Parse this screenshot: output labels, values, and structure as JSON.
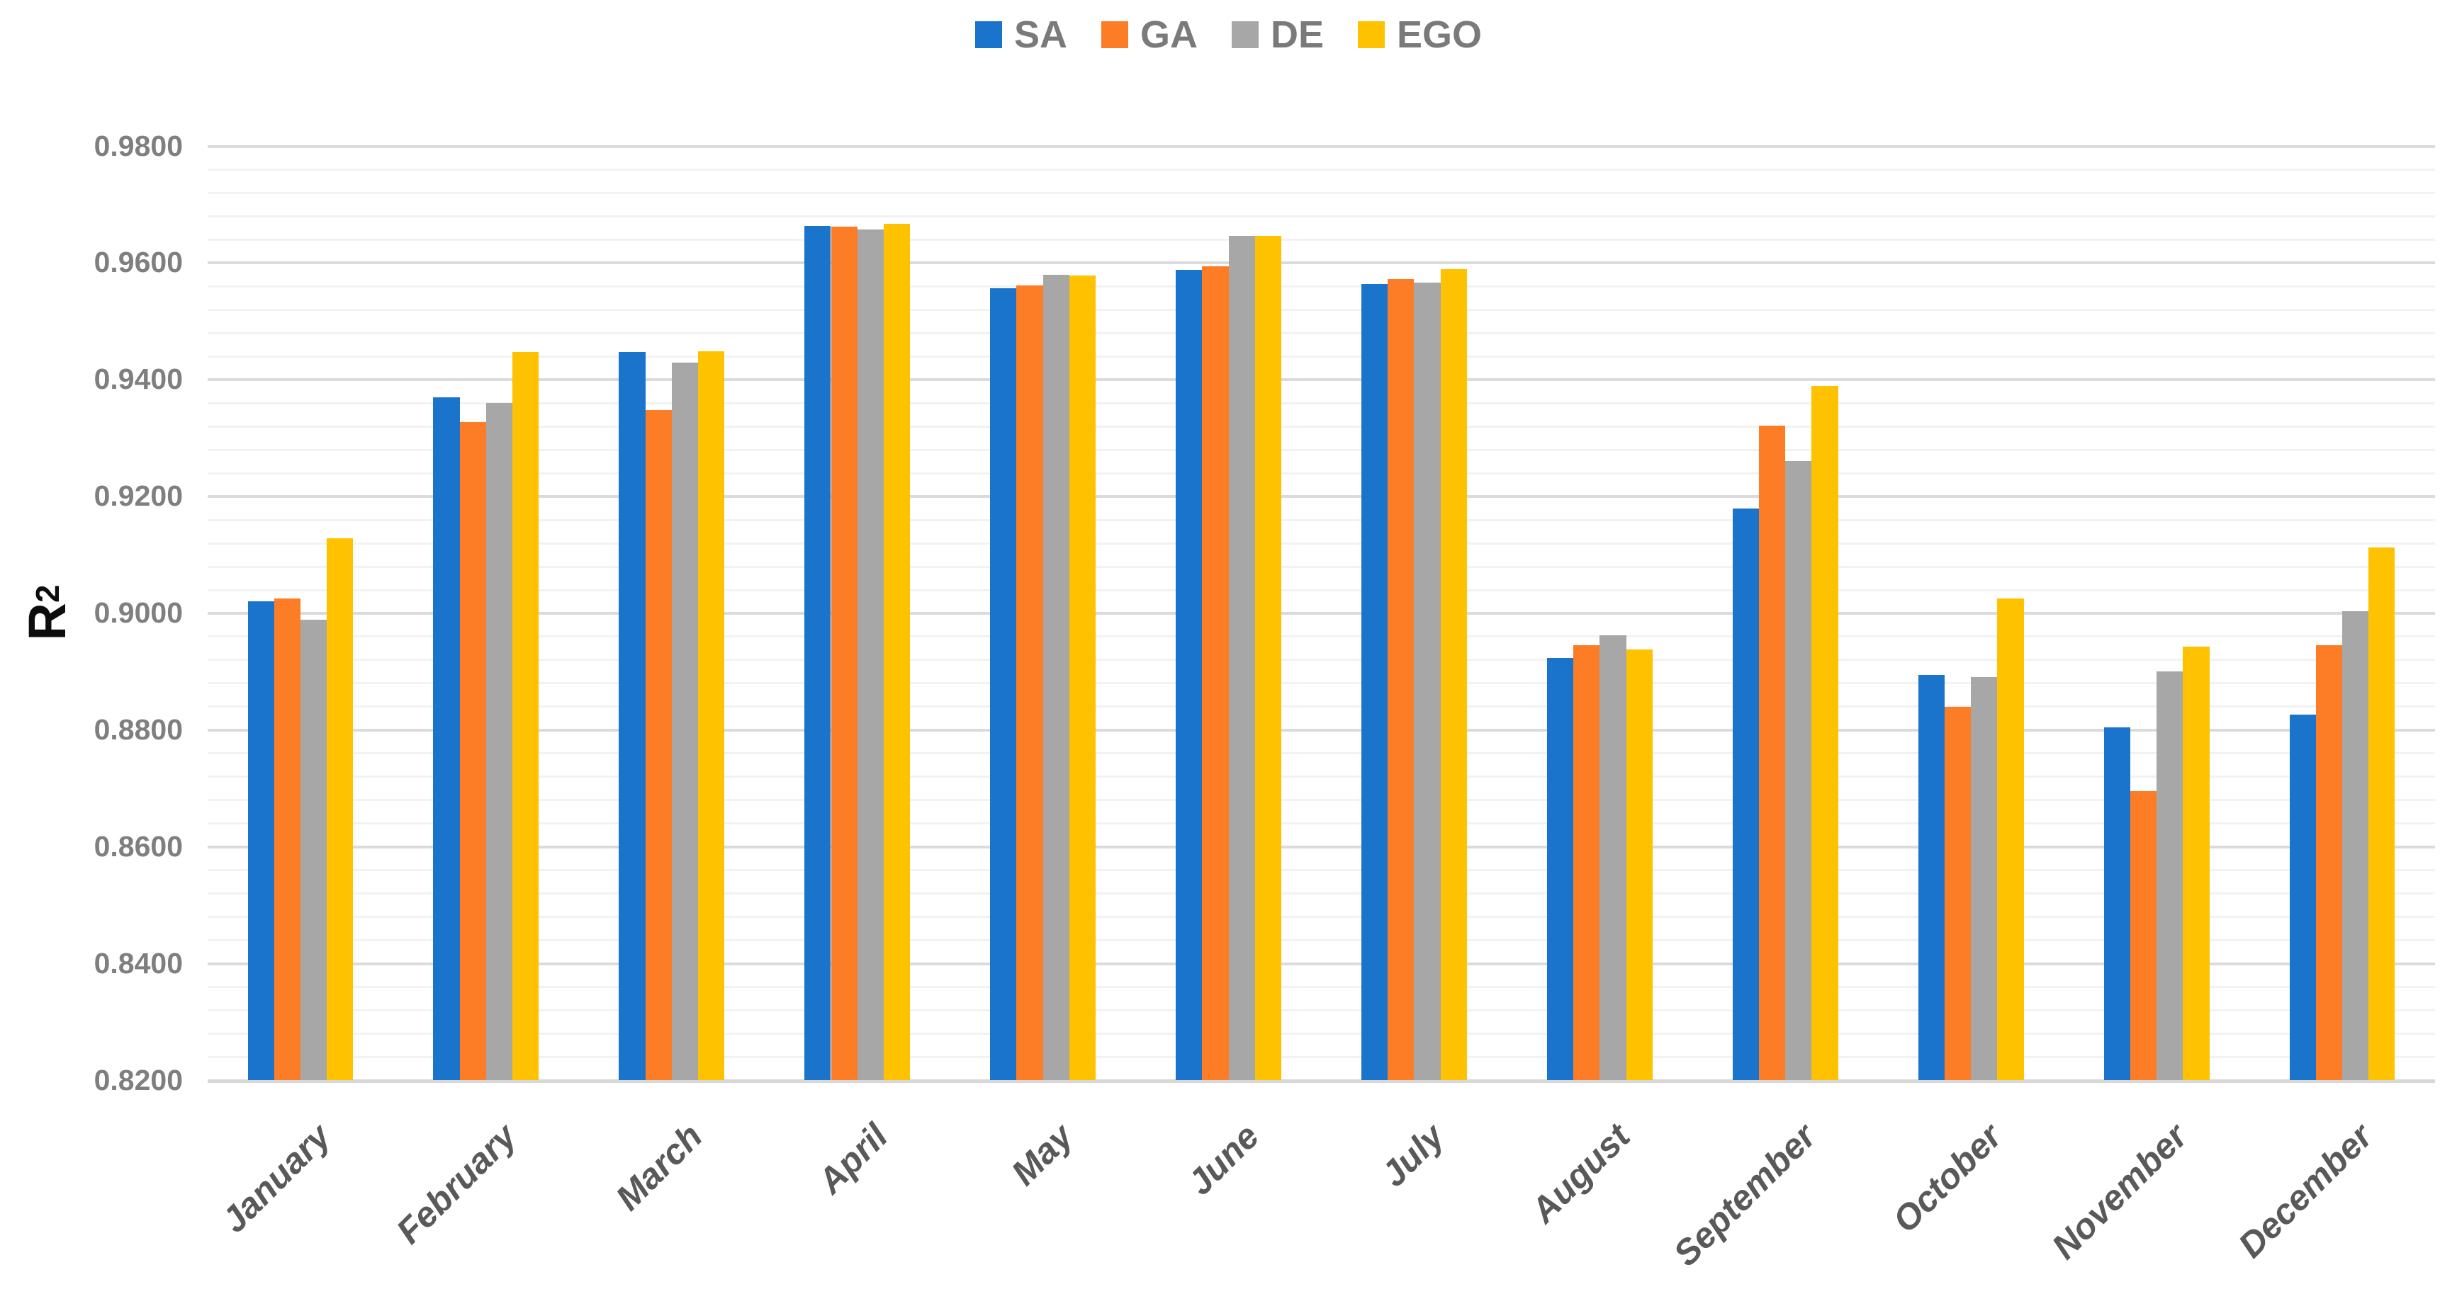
{
  "chart_data": {
    "type": "bar",
    "title": "",
    "ylabel_base": "R",
    "ylabel_sup": "2",
    "ylabel": "R²",
    "ylim": [
      0.82,
      0.98
    ],
    "major_tick_step": 0.02,
    "minor_tick_step": 0.004,
    "grid": "horizontal, major and minor lines on",
    "legend_position": "top-center",
    "yticks": [
      "0.9800",
      "0.9600",
      "0.9400",
      "0.9200",
      "0.9000",
      "0.8800",
      "0.8600",
      "0.8400",
      "0.8200"
    ],
    "categories": [
      "January",
      "February",
      "March",
      "April",
      "May",
      "June",
      "July",
      "August",
      "September",
      "October",
      "November",
      "December"
    ],
    "series": [
      {
        "name": "SA",
        "color": "#1B74CB",
        "values": [
          0.9021,
          0.937,
          0.9448,
          0.9663,
          0.9557,
          0.9588,
          0.9564,
          0.8923,
          0.9179,
          0.8894,
          0.8805,
          0.8827
        ]
      },
      {
        "name": "GA",
        "color": "#FD7D26",
        "values": [
          0.9026,
          0.9328,
          0.9348,
          0.9662,
          0.9562,
          0.9594,
          0.9573,
          0.8945,
          0.9321,
          0.884,
          0.8696,
          0.8945
        ]
      },
      {
        "name": "DE",
        "color": "#A7A7A7",
        "values": [
          0.8989,
          0.936,
          0.943,
          0.9658,
          0.958,
          0.9646,
          0.9567,
          0.8962,
          0.9261,
          0.8891,
          0.8901,
          0.9004
        ]
      },
      {
        "name": "EGO",
        "color": "#FFC200",
        "values": [
          0.9129,
          0.9448,
          0.9449,
          0.9667,
          0.9579,
          0.9646,
          0.959,
          0.8938,
          0.9389,
          0.9026,
          0.8943,
          0.9113
        ]
      }
    ],
    "colors": {
      "background": "#FFFFFF",
      "major_grid": "#DBDBDB",
      "minor_grid": "#F2F2F2",
      "axis_line": "#D7D7D7",
      "ytick_text": "#7F7F7F",
      "xtick_text": "#595959",
      "legend_text": "#7A7A7A",
      "axis_title_text": "#0D0D0D"
    }
  }
}
